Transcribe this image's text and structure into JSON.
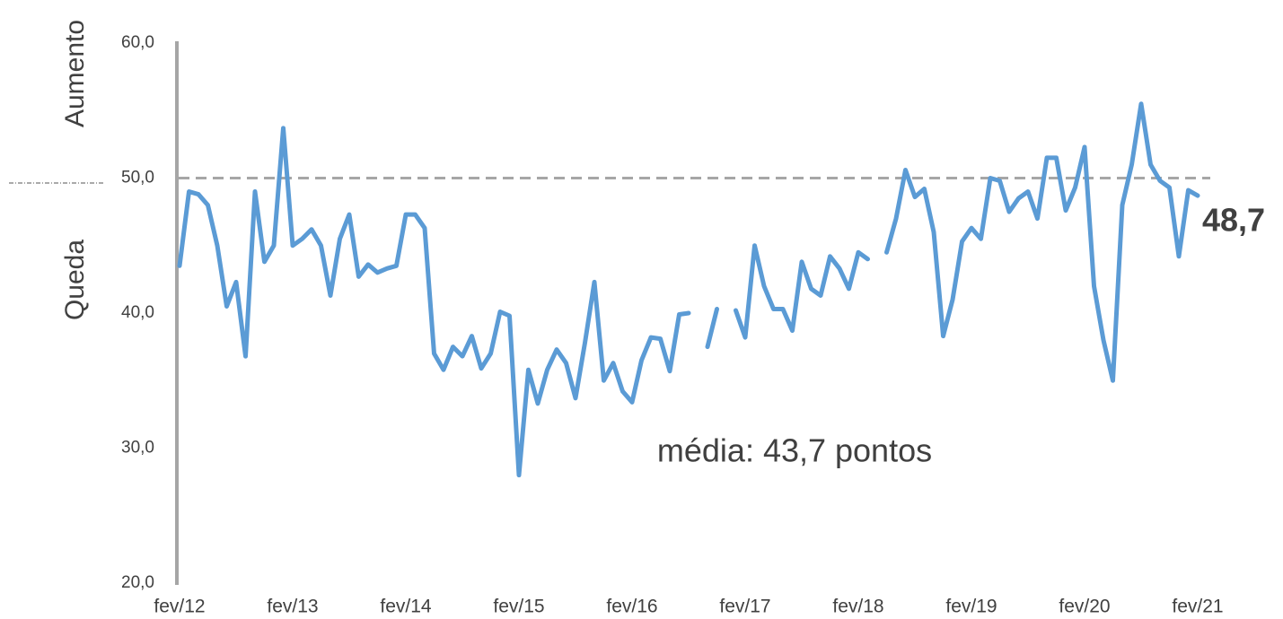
{
  "chart_data": {
    "type": "line",
    "annotations": {
      "average": "média: 43,7 pontos",
      "upper_label": "Aumento",
      "lower_label": "Queda"
    },
    "reference_line": 50,
    "categories": [
      "fev/12",
      null,
      null,
      null,
      null,
      null,
      null,
      null,
      null,
      null,
      null,
      null,
      "fev/13",
      null,
      null,
      null,
      null,
      null,
      null,
      null,
      null,
      null,
      null,
      null,
      "fev/14",
      null,
      null,
      null,
      null,
      null,
      null,
      null,
      null,
      null,
      null,
      null,
      "fev/15",
      null,
      null,
      null,
      null,
      null,
      null,
      null,
      null,
      null,
      null,
      null,
      "fev/16",
      null,
      null,
      null,
      null,
      null,
      null,
      null,
      null,
      null,
      null,
      null,
      "fev/17",
      null,
      null,
      null,
      null,
      null,
      null,
      null,
      null,
      null,
      null,
      null,
      "fev/18",
      null,
      null,
      null,
      null,
      null,
      null,
      null,
      null,
      null,
      null,
      null,
      "fev/19",
      null,
      null,
      null,
      null,
      null,
      null,
      null,
      null,
      null,
      null,
      null,
      "fev/20",
      null,
      null,
      null,
      null,
      null,
      null,
      null,
      null,
      null,
      null,
      null,
      "fev/21"
    ],
    "series": [
      {
        "color": "#5b9bd5",
        "values": [
          43.5,
          49,
          48.8,
          48,
          45,
          40.5,
          42.3,
          36.8,
          49,
          43.8,
          45,
          53.7,
          45,
          45.5,
          46.2,
          45,
          41.3,
          45.5,
          47.3,
          42.7,
          43.6,
          43,
          43.3,
          43.5,
          47.3,
          47.3,
          46.3,
          37,
          35.8,
          37.5,
          36.8,
          38.3,
          35.9,
          37,
          40.1,
          39.8,
          28,
          35.8,
          33.3,
          35.8,
          37.3,
          36.3,
          33.7,
          37.8,
          42.3,
          35,
          36.3,
          34.2,
          33.4,
          36.5,
          38.2,
          38.1,
          35.7,
          39.9,
          40,
          null,
          37.5,
          40.3,
          null,
          40.2,
          38.2,
          45,
          42,
          40.3,
          40.3,
          38.7,
          43.8,
          41.8,
          41.3,
          44.2,
          43.3,
          41.8,
          44.5,
          44,
          null,
          44.5,
          47,
          50.6,
          48.6,
          49.2,
          46,
          38.3,
          41,
          45.3,
          46.3,
          45.5,
          50,
          49.8,
          47.5,
          48.5,
          49,
          47,
          51.5,
          51.5,
          47.6,
          49.3,
          52.3,
          42,
          38,
          35,
          48,
          51,
          55.5,
          51,
          49.8,
          49.3,
          44.2,
          49.1,
          48.7
        ],
        "value_labels": [
          null,
          null,
          null,
          null,
          null,
          null,
          null,
          null,
          null,
          null,
          null,
          null,
          null,
          null,
          null,
          null,
          null,
          null,
          null,
          null,
          null,
          null,
          null,
          null,
          null,
          null,
          null,
          null,
          null,
          null,
          null,
          null,
          null,
          null,
          null,
          null,
          null,
          null,
          null,
          null,
          null,
          null,
          null,
          null,
          null,
          null,
          null,
          null,
          null,
          null,
          null,
          null,
          null,
          null,
          null,
          null,
          null,
          null,
          null,
          null,
          null,
          null,
          null,
          null,
          null,
          null,
          null,
          null,
          null,
          null,
          null,
          null,
          null,
          null,
          null,
          null,
          null,
          null,
          null,
          null,
          null,
          null,
          null,
          null,
          null,
          null,
          null,
          null,
          null,
          null,
          null,
          null,
          null,
          null,
          null,
          null,
          null,
          null,
          null,
          null,
          null,
          null,
          null,
          null,
          null,
          null,
          null,
          null,
          "48,7"
        ]
      }
    ],
    "ylim": [
      20,
      60
    ],
    "yticks": [
      {
        "value": 20,
        "label": "20,0"
      },
      {
        "value": 30,
        "label": "30,0"
      },
      {
        "value": 40,
        "label": "40,0"
      },
      {
        "value": 50,
        "label": "50,0"
      },
      {
        "value": 60,
        "label": "60,0"
      }
    ]
  }
}
